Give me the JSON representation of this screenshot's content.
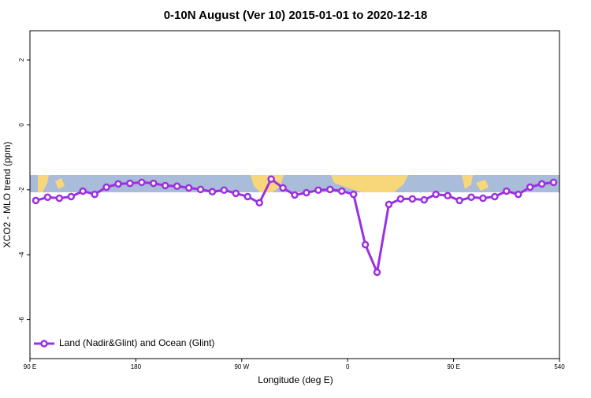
{
  "chart_data": {
    "type": "line",
    "title": "0-10N August (Ver 10)   2015-01-01 to 2020-12-18",
    "x_label": "Longitude (deg E)",
    "y_label": "XCO2 - MLO trend (ppm)",
    "x": [
      95,
      105,
      115,
      125,
      135,
      145,
      155,
      165,
      175,
      185,
      195,
      205,
      215,
      225,
      235,
      245,
      255,
      265,
      275,
      285,
      295,
      305,
      315,
      325,
      335,
      345,
      355,
      365,
      375,
      385,
      395,
      405,
      415,
      425,
      435,
      445,
      455,
      465,
      475,
      485,
      495,
      505,
      515,
      525,
      535
    ],
    "series": [
      {
        "name": "Land (Nadir&Glint) and Ocean (Glint)",
        "color": "#9b30e0",
        "values": [
          -2.33,
          -2.23,
          -2.26,
          -2.21,
          -2.04,
          -2.14,
          -1.92,
          -1.82,
          -1.8,
          -1.77,
          -1.8,
          -1.87,
          -1.89,
          -1.94,
          -1.99,
          -2.06,
          -2.01,
          -2.11,
          -2.21,
          -2.4,
          -1.67,
          -1.94,
          -2.16,
          -2.09,
          -2.01,
          -1.99,
          -2.04,
          -2.14,
          -3.69,
          -4.54,
          -2.45,
          -2.28,
          -2.28,
          -2.31,
          -2.14,
          -2.18,
          -2.33,
          -2.23,
          -2.26,
          -2.21,
          -2.04,
          -2.14,
          -1.92,
          -1.82,
          -1.77
        ]
      }
    ],
    "xlim": [
      90,
      540
    ],
    "xticks": [
      {
        "value": 90,
        "label": "90 E"
      },
      180,
      {
        "value": 270,
        "label": "90 W"
      },
      {
        "value": 360,
        "label": "0"
      },
      {
        "value": 450,
        "label": "90 E"
      },
      540
    ],
    "ylim": [
      -7.2,
      2.9
    ],
    "yticks": [
      -6,
      -4,
      -2,
      0,
      2
    ],
    "legend": "bottom-left"
  }
}
